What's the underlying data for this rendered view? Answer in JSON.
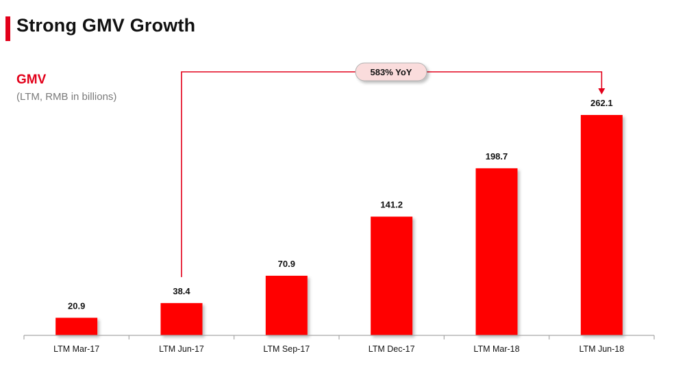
{
  "header": {
    "title": "Strong GMV Growth",
    "accent_color": "#e2001a"
  },
  "chart_data": {
    "type": "bar",
    "title": "GMV",
    "subtitle": "(LTM, RMB in billions)",
    "categories": [
      "LTM Mar-17",
      "LTM Jun-17",
      "LTM Sep-17",
      "LTM Dec-17",
      "LTM Mar-18",
      "LTM Jun-18"
    ],
    "values": [
      20.9,
      38.4,
      70.9,
      141.2,
      198.7,
      262.1
    ],
    "data_labels": [
      "20.9",
      "38.4",
      "70.9",
      "141.2",
      "198.7",
      "262.1"
    ],
    "bar_color": "#ff0000",
    "ylim": [
      0,
      262.1
    ],
    "grid": false,
    "annotation": {
      "text": "583% YoY",
      "from_category": "LTM Jun-17",
      "to_category": "LTM Jun-18",
      "line_color": "#e2001a",
      "pill_color": "#fadcdc"
    }
  }
}
